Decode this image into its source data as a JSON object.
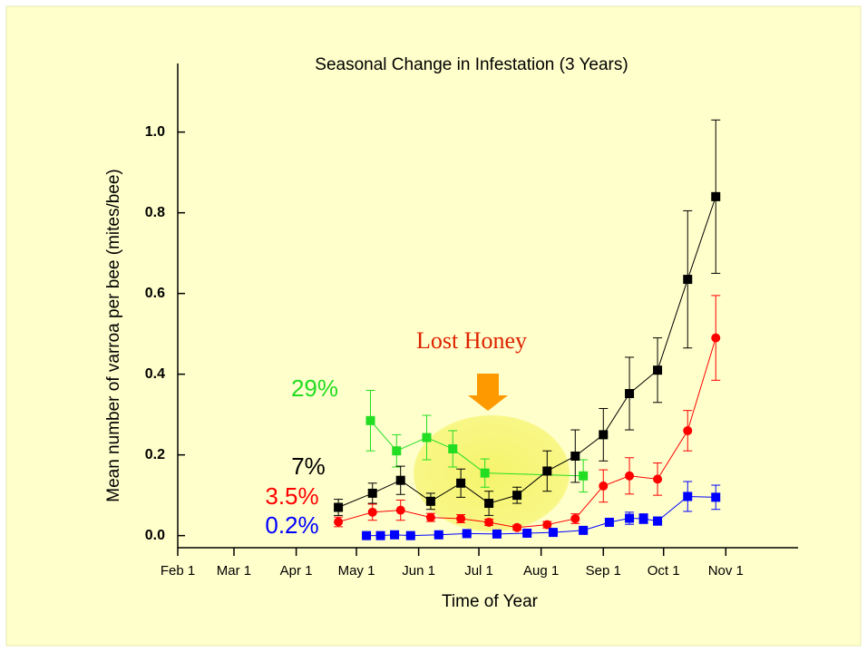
{
  "chart_data": {
    "type": "line",
    "title": "Seasonal Change in Infestation (3 Years)",
    "xlabel": "Time of Year",
    "ylabel": "Mean number of varroa per bee (mites/bee)",
    "xlim": [
      31,
      340
    ],
    "ylim": [
      -0.03,
      1.17
    ],
    "xticks": [
      {
        "value": 31,
        "label": "Feb 1"
      },
      {
        "value": 59,
        "label": "Mar 1"
      },
      {
        "value": 90,
        "label": "Apr 1"
      },
      {
        "value": 120,
        "label": "May 1"
      },
      {
        "value": 151,
        "label": "Jun 1"
      },
      {
        "value": 181,
        "label": "Jul 1"
      },
      {
        "value": 212,
        "label": "Aug 1"
      },
      {
        "value": 243,
        "label": "Sep 1"
      },
      {
        "value": 273,
        "label": "Oct 1"
      },
      {
        "value": 304,
        "label": "Nov 1"
      }
    ],
    "yticks": [
      {
        "value": 0,
        "label": "0.0"
      },
      {
        "value": 0.2,
        "label": "0.2"
      },
      {
        "value": 0.4,
        "label": "0.4"
      },
      {
        "value": 0.6,
        "label": "0.6"
      },
      {
        "value": 0.8,
        "label": "0.8"
      },
      {
        "value": 1,
        "label": "1.0"
      }
    ],
    "series": [
      {
        "color": "#22dd22",
        "marker": "square",
        "x": [
          127,
          140,
          155,
          168,
          184,
          233
        ],
        "values": [
          0.285,
          0.21,
          0.243,
          0.215,
          0.155,
          0.148
        ],
        "errors": [
          0.075,
          0.04,
          0.055,
          0.045,
          0.035,
          0.04
        ]
      },
      {
        "color": "#000000",
        "marker": "square",
        "x": [
          111,
          128,
          142,
          157,
          172,
          186,
          200,
          215,
          229,
          243,
          256,
          270,
          285,
          299
        ],
        "values": [
          0.07,
          0.105,
          0.137,
          0.085,
          0.13,
          0.08,
          0.1,
          0.16,
          0.197,
          0.25,
          0.352,
          0.41,
          0.635,
          0.84
        ],
        "errors": [
          0.02,
          0.025,
          0.035,
          0.02,
          0.035,
          0.03,
          0.02,
          0.05,
          0.065,
          0.065,
          0.09,
          0.08,
          0.17,
          0.19
        ]
      },
      {
        "color": "#ff0000",
        "marker": "circle",
        "x": [
          111,
          128,
          142,
          157,
          172,
          186,
          200,
          215,
          229,
          243,
          256,
          270,
          285,
          299
        ],
        "values": [
          0.034,
          0.058,
          0.063,
          0.045,
          0.042,
          0.033,
          0.02,
          0.027,
          0.042,
          0.123,
          0.148,
          0.14,
          0.26,
          0.49
        ],
        "errors": [
          0.012,
          0.02,
          0.025,
          0.01,
          0.01,
          0.008,
          0.006,
          0.008,
          0.012,
          0.04,
          0.045,
          0.04,
          0.05,
          0.105
        ]
      },
      {
        "color": "#0000ff",
        "marker": "square",
        "x": [
          125,
          132,
          139,
          147,
          161,
          175,
          190,
          205,
          218,
          233,
          246,
          256,
          263,
          270,
          285,
          299
        ],
        "values": [
          0,
          0,
          0.002,
          0,
          0.002,
          0.005,
          0.004,
          0.006,
          0.008,
          0.013,
          0.033,
          0.043,
          0.042,
          0.036,
          0.097,
          0.095
        ],
        "errors": [
          0.003,
          0.003,
          0.003,
          0.003,
          0.003,
          0.003,
          0.003,
          0.003,
          0.003,
          0.005,
          0.01,
          0.015,
          0.012,
          0.01,
          0.037,
          0.03
        ]
      }
    ],
    "annotations": [
      {
        "text": "29%",
        "color": "#22dd22"
      },
      {
        "text": "7%",
        "color": "#000000"
      },
      {
        "text": "3.5%",
        "color": "#ff0000"
      },
      {
        "text": "0.2%",
        "color": "#0000ff"
      },
      {
        "text": "Lost Honey",
        "color": "#dd2200"
      }
    ]
  }
}
